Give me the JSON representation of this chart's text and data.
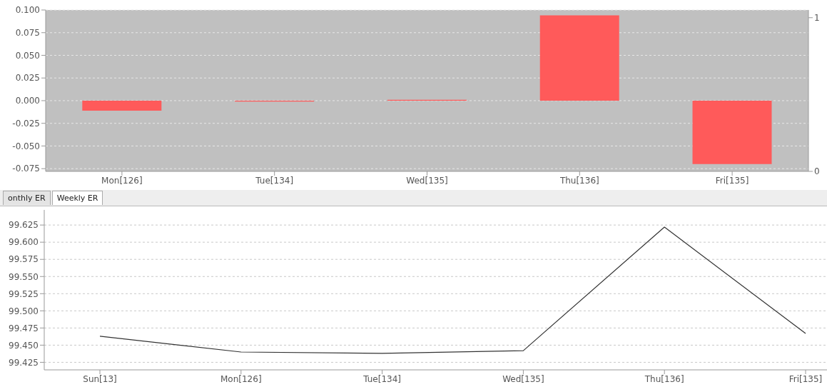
{
  "chart_data": [
    {
      "type": "bar",
      "categories": [
        "Mon[126]",
        "Tue[134]",
        "Wed[135]",
        "Thu[136]",
        "Fri[135]"
      ],
      "series": [
        {
          "color": "#ff5a5a",
          "values": [
            -0.011,
            -0.001,
            0.001,
            0.094,
            -0.07
          ]
        }
      ],
      "ylim": [
        -0.078,
        0.1
      ],
      "yticks": [
        {
          "value": -0.075,
          "label": "-0.075"
        },
        {
          "value": -0.05,
          "label": "-0.050"
        },
        {
          "value": -0.025,
          "label": "-0.025"
        },
        {
          "value": 0,
          "label": "0.000"
        },
        {
          "value": 0.025,
          "label": "0.025"
        },
        {
          "value": 0.05,
          "label": "0.050"
        },
        {
          "value": 0.075,
          "label": "0.075"
        },
        {
          "value": 0.1,
          "label": "0.100"
        }
      ],
      "y2lim": [
        0,
        1.05
      ],
      "y2ticks": [
        0,
        1
      ],
      "grid": "y"
    },
    {
      "type": "line",
      "categories": [
        "Sun[13]",
        "Mon[126]",
        "Tue[134]",
        "Wed[135]",
        "Thu[136]",
        "Fri[135]"
      ],
      "series": [
        {
          "color": "#333333",
          "values": [
            99.463,
            99.44,
            99.438,
            99.442,
            99.622,
            99.467
          ]
        }
      ],
      "ylim": [
        99.414,
        99.647
      ],
      "yticks": [
        {
          "value": 99.425,
          "label": "99.425"
        },
        {
          "value": 99.45,
          "label": "99.450"
        },
        {
          "value": 99.475,
          "label": "99.475"
        },
        {
          "value": 99.5,
          "label": "99.500"
        },
        {
          "value": 99.525,
          "label": "99.525"
        },
        {
          "value": 99.55,
          "label": "99.550"
        },
        {
          "value": 99.575,
          "label": "99.575"
        },
        {
          "value": 99.6,
          "label": "99.600"
        },
        {
          "value": 99.625,
          "label": "99.625"
        }
      ],
      "grid": "y",
      "marker": "none",
      "annotations": [
        "onthly ER",
        "Weekly ER"
      ]
    }
  ]
}
